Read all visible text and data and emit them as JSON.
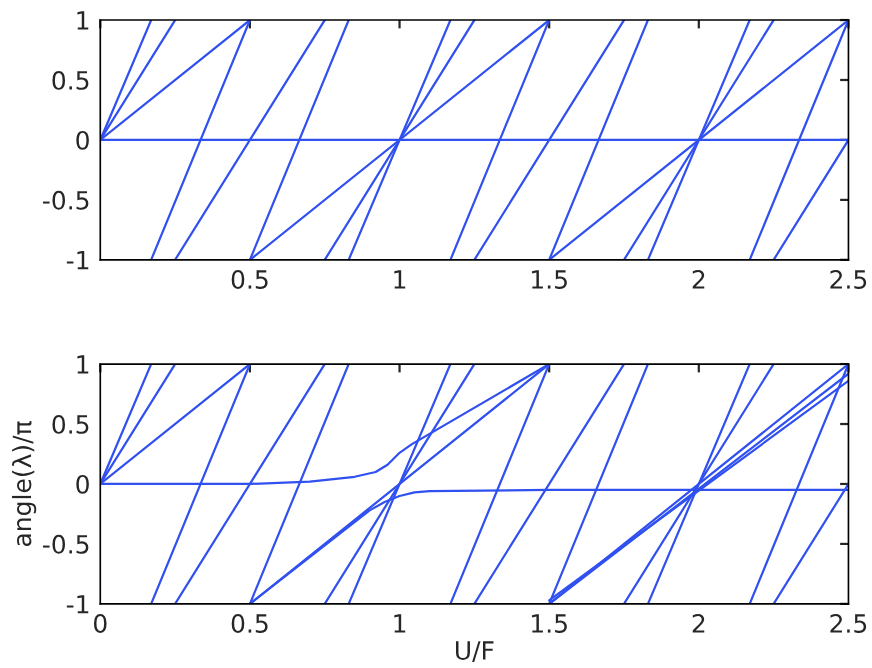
{
  "chart_data": [
    {
      "type": "line",
      "xlim": [
        0,
        2.5
      ],
      "ylim": [
        -1,
        1
      ],
      "xticks": [
        {
          "value": 0,
          "label": null
        },
        0.5,
        1,
        1.5,
        2,
        2.5
      ],
      "yticks": [
        -1,
        -0.5,
        0,
        0.5,
        1
      ],
      "series": [
        {
          "color": "#3050f0",
          "x": [
            0,
            2.5
          ],
          "values": [
            0,
            0
          ]
        },
        {
          "color": "#3050f0",
          "x": [
            0,
            0.5
          ],
          "values": [
            0,
            1
          ]
        },
        {
          "color": "#3050f0",
          "x": [
            0.5,
            1.5
          ],
          "values": [
            -1,
            1
          ]
        },
        {
          "color": "#3050f0",
          "x": [
            1.5,
            2.5
          ],
          "values": [
            -1,
            1
          ]
        },
        {
          "color": "#3050f0",
          "x": [
            0,
            0.25
          ],
          "values": [
            0,
            1
          ]
        },
        {
          "color": "#3050f0",
          "x": [
            0.25,
            0.75
          ],
          "values": [
            -1,
            1
          ]
        },
        {
          "color": "#3050f0",
          "x": [
            0.75,
            1.25
          ],
          "values": [
            -1,
            1
          ]
        },
        {
          "color": "#3050f0",
          "x": [
            1.25,
            1.75
          ],
          "values": [
            -1,
            1
          ]
        },
        {
          "color": "#3050f0",
          "x": [
            1.75,
            2.25
          ],
          "values": [
            -1,
            1
          ]
        },
        {
          "color": "#3050f0",
          "x": [
            2.25,
            2.5
          ],
          "values": [
            -1,
            0
          ]
        },
        {
          "color": "#3050f0",
          "x": [
            0,
            0.17
          ],
          "values": [
            0,
            1
          ]
        },
        {
          "color": "#3050f0",
          "x": [
            0.17,
            0.5
          ],
          "values": [
            -1,
            1
          ]
        },
        {
          "color": "#3050f0",
          "x": [
            0.5,
            0.83
          ],
          "values": [
            -1,
            1
          ]
        },
        {
          "color": "#3050f0",
          "x": [
            0.83,
            1.17
          ],
          "values": [
            -1,
            1
          ]
        },
        {
          "color": "#3050f0",
          "x": [
            1.17,
            1.5
          ],
          "values": [
            -1,
            1
          ]
        },
        {
          "color": "#3050f0",
          "x": [
            1.5,
            1.83
          ],
          "values": [
            -1,
            1
          ]
        },
        {
          "color": "#3050f0",
          "x": [
            1.83,
            2.17
          ],
          "values": [
            -1,
            1
          ]
        },
        {
          "color": "#3050f0",
          "x": [
            2.17,
            2.5
          ],
          "values": [
            -1,
            1
          ]
        }
      ]
    },
    {
      "type": "line",
      "xlabel": "U/F",
      "ylabel": "angle(λ)/π",
      "xlim": [
        0,
        2.5
      ],
      "ylim": [
        -1,
        1
      ],
      "xticks": [
        0,
        0.5,
        1,
        1.5,
        2,
        2.5
      ],
      "yticks": [
        -1,
        -0.5,
        0,
        0.5,
        1
      ],
      "series": [
        {
          "color": "#3050f0",
          "x": [
            0,
            0.5,
            0.7,
            0.85,
            0.92,
            0.96,
            1.0,
            1.04,
            1.5
          ],
          "values": [
            0,
            0,
            0.02,
            0.06,
            0.1,
            0.16,
            0.26,
            0.33,
            1
          ]
        },
        {
          "color": "#3050f0",
          "x": [
            0.5,
            0.9,
            0.95,
            1.0,
            1.05,
            1.1,
            1.5,
            2.5
          ],
          "values": [
            -1,
            -0.22,
            -0.15,
            -0.1,
            -0.07,
            -0.06,
            -0.05,
            -0.05
          ]
        },
        {
          "color": "#3050f0",
          "x": [
            0,
            0.5
          ],
          "values": [
            0,
            1
          ]
        },
        {
          "color": "#3050f0",
          "x": [
            0.5,
            1.5
          ],
          "values": [
            -1,
            1
          ]
        },
        {
          "color": "#3050f0",
          "x": [
            1.5,
            2.5
          ],
          "values": [
            -1,
            1
          ]
        },
        {
          "color": "#3050f0",
          "x": [
            1.5,
            2.5
          ],
          "values": [
            -1,
            0.92
          ]
        },
        {
          "color": "#3050f0",
          "x": [
            1.5,
            2.5
          ],
          "values": [
            -0.97,
            0.86
          ]
        },
        {
          "color": "#3050f0",
          "x": [
            0,
            0.25
          ],
          "values": [
            0,
            1
          ]
        },
        {
          "color": "#3050f0",
          "x": [
            0.25,
            0.75
          ],
          "values": [
            -1,
            1
          ]
        },
        {
          "color": "#3050f0",
          "x": [
            0.75,
            1.25
          ],
          "values": [
            -1,
            1
          ]
        },
        {
          "color": "#3050f0",
          "x": [
            1.25,
            1.75
          ],
          "values": [
            -1,
            1
          ]
        },
        {
          "color": "#3050f0",
          "x": [
            1.75,
            2.25
          ],
          "values": [
            -1,
            1
          ]
        },
        {
          "color": "#3050f0",
          "x": [
            2.25,
            2.5
          ],
          "values": [
            -1,
            0
          ]
        },
        {
          "color": "#3050f0",
          "x": [
            0,
            0.17
          ],
          "values": [
            0,
            1
          ]
        },
        {
          "color": "#3050f0",
          "x": [
            0.17,
            0.5
          ],
          "values": [
            -1,
            1
          ]
        },
        {
          "color": "#3050f0",
          "x": [
            0.5,
            0.83
          ],
          "values": [
            -1,
            1
          ]
        },
        {
          "color": "#3050f0",
          "x": [
            0.83,
            1.17
          ],
          "values": [
            -1,
            1
          ]
        },
        {
          "color": "#3050f0",
          "x": [
            1.17,
            1.5
          ],
          "values": [
            -1,
            1
          ]
        },
        {
          "color": "#3050f0",
          "x": [
            1.5,
            1.83
          ],
          "values": [
            -1,
            1
          ]
        },
        {
          "color": "#3050f0",
          "x": [
            1.83,
            2.17
          ],
          "values": [
            -1,
            1
          ]
        },
        {
          "color": "#3050f0",
          "x": [
            2.17,
            2.5
          ],
          "values": [
            -1,
            1
          ]
        }
      ]
    }
  ]
}
